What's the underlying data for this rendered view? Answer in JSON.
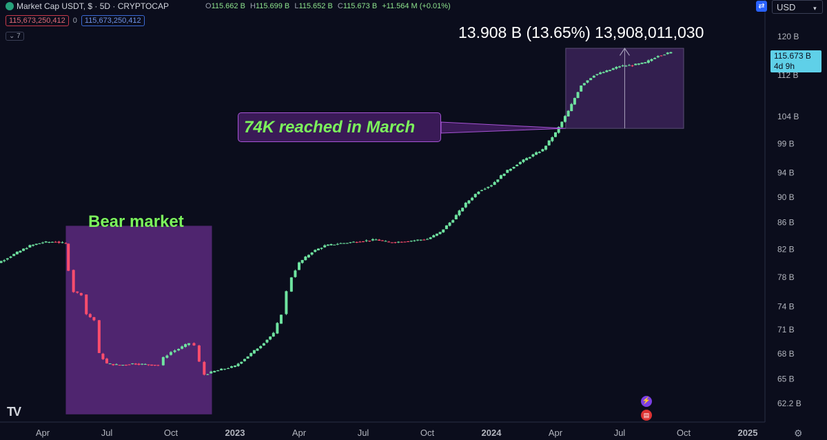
{
  "header": {
    "symbol_title": "Market Cap USDT, $ · 5D · CRYPTOCAP",
    "ohlc": [
      {
        "k": "O",
        "v": "115.662 B"
      },
      {
        "k": "H",
        "v": "115.699 B"
      },
      {
        "k": "L",
        "v": "115.652 B"
      },
      {
        "k": "C",
        "v": "115.673 B"
      },
      {
        "k": "",
        "v": "+11.564 M (+0.01%)"
      }
    ],
    "box_red": "115,673,250,412",
    "box_zero": "0",
    "box_blue": "115,673,250,412",
    "indicator_count": "7",
    "currency": "USD"
  },
  "price_tag": {
    "price": "115.673 B",
    "countdown": "4d 9h"
  },
  "measure_label": "13.908 B (13.65%) 13,908,011,030",
  "annotations": {
    "bear_label": "Bear market",
    "callout": "74K reached in March"
  },
  "colors": {
    "up": "#6fe3a0",
    "down": "#ff4d6d",
    "bear_box": "#5c2a7e",
    "measure_box": "#3b2358",
    "accent": "#2962ff"
  },
  "icons": [
    "tradingview-logo-icon",
    "swap-icon",
    "lightning-icon",
    "us-flag-icon",
    "gear-icon"
  ],
  "chart_data": {
    "type": "candlestick",
    "title": "Market Cap USDT, $ · 5D · CRYPTOCAP",
    "y_scale": "log",
    "ylim": [
      60,
      125
    ],
    "y_ticks": [
      {
        "label": "120 B",
        "v": 120
      },
      {
        "label": "112 B",
        "v": 112
      },
      {
        "label": "104 B",
        "v": 104
      },
      {
        "label": "99 B",
        "v": 99
      },
      {
        "label": "94 B",
        "v": 94
      },
      {
        "label": "90 B",
        "v": 90
      },
      {
        "label": "86 B",
        "v": 86
      },
      {
        "label": "82 B",
        "v": 82
      },
      {
        "label": "78 B",
        "v": 78
      },
      {
        "label": "74 B",
        "v": 74
      },
      {
        "label": "71 B",
        "v": 71
      },
      {
        "label": "68 B",
        "v": 68
      },
      {
        "label": "65 B",
        "v": 65
      },
      {
        "label": "62.2 B",
        "v": 62.2
      }
    ],
    "x_ticks": [
      {
        "label": "Apr",
        "t": 2022.25
      },
      {
        "label": "Jul",
        "t": 2022.5
      },
      {
        "label": "Oct",
        "t": 2022.75
      },
      {
        "label": "2023",
        "t": 2023.0
      },
      {
        "label": "Apr",
        "t": 2023.25
      },
      {
        "label": "Jul",
        "t": 2023.5
      },
      {
        "label": "Oct",
        "t": 2023.75
      },
      {
        "label": "2024",
        "t": 2024.0
      },
      {
        "label": "Apr",
        "t": 2024.25
      },
      {
        "label": "Jul",
        "t": 2024.5
      },
      {
        "label": "Oct",
        "t": 2024.75
      },
      {
        "label": "2025",
        "t": 2025.0
      }
    ],
    "xlim": [
      2022.0,
      2025.07
    ],
    "series": [
      {
        "values": [
          [
            2022.0,
            78.5
          ],
          [
            2022.05,
            79.5
          ],
          [
            2022.1,
            80.5
          ],
          [
            2022.15,
            81.5
          ],
          [
            2022.2,
            82.5
          ],
          [
            2022.25,
            83.0
          ],
          [
            2022.3,
            83.1
          ],
          [
            2022.34,
            82.8
          ],
          [
            2022.35,
            79.0
          ],
          [
            2022.37,
            76.0
          ],
          [
            2022.4,
            75.6
          ],
          [
            2022.42,
            73.0
          ],
          [
            2022.45,
            72.2
          ],
          [
            2022.47,
            68.0
          ],
          [
            2022.5,
            66.8
          ],
          [
            2022.55,
            66.6
          ],
          [
            2022.6,
            66.8
          ],
          [
            2022.65,
            66.7
          ],
          [
            2022.7,
            66.6
          ],
          [
            2022.72,
            67.5
          ],
          [
            2022.75,
            68.2
          ],
          [
            2022.78,
            68.6
          ],
          [
            2022.82,
            69.3
          ],
          [
            2022.84,
            69.0
          ],
          [
            2022.86,
            67.0
          ],
          [
            2022.88,
            65.5
          ],
          [
            2022.92,
            65.9
          ],
          [
            2022.96,
            66.2
          ],
          [
            2023.0,
            66.5
          ],
          [
            2023.05,
            67.7
          ],
          [
            2023.1,
            69.0
          ],
          [
            2023.15,
            70.5
          ],
          [
            2023.18,
            73.0
          ],
          [
            2023.2,
            76.0
          ],
          [
            2023.22,
            78.0
          ],
          [
            2023.25,
            80.0
          ],
          [
            2023.3,
            81.6
          ],
          [
            2023.35,
            82.5
          ],
          [
            2023.4,
            82.8
          ],
          [
            2023.45,
            83.0
          ],
          [
            2023.5,
            83.2
          ],
          [
            2023.55,
            83.4
          ],
          [
            2023.6,
            83.0
          ],
          [
            2023.65,
            83.1
          ],
          [
            2023.7,
            83.3
          ],
          [
            2023.75,
            83.5
          ],
          [
            2023.8,
            84.5
          ],
          [
            2023.85,
            86.5
          ],
          [
            2023.9,
            89.0
          ],
          [
            2023.95,
            91.0
          ],
          [
            2024.0,
            92.0
          ],
          [
            2024.05,
            94.0
          ],
          [
            2024.1,
            95.5
          ],
          [
            2024.15,
            96.8
          ],
          [
            2024.2,
            98.0
          ],
          [
            2024.25,
            101.0
          ],
          [
            2024.3,
            105.0
          ],
          [
            2024.35,
            110.0
          ],
          [
            2024.4,
            112.0
          ],
          [
            2024.45,
            112.8
          ],
          [
            2024.5,
            113.8
          ],
          [
            2024.55,
            114.0
          ],
          [
            2024.6,
            114.5
          ],
          [
            2024.65,
            116.0
          ],
          [
            2024.7,
            116.6
          ]
        ]
      }
    ]
  }
}
